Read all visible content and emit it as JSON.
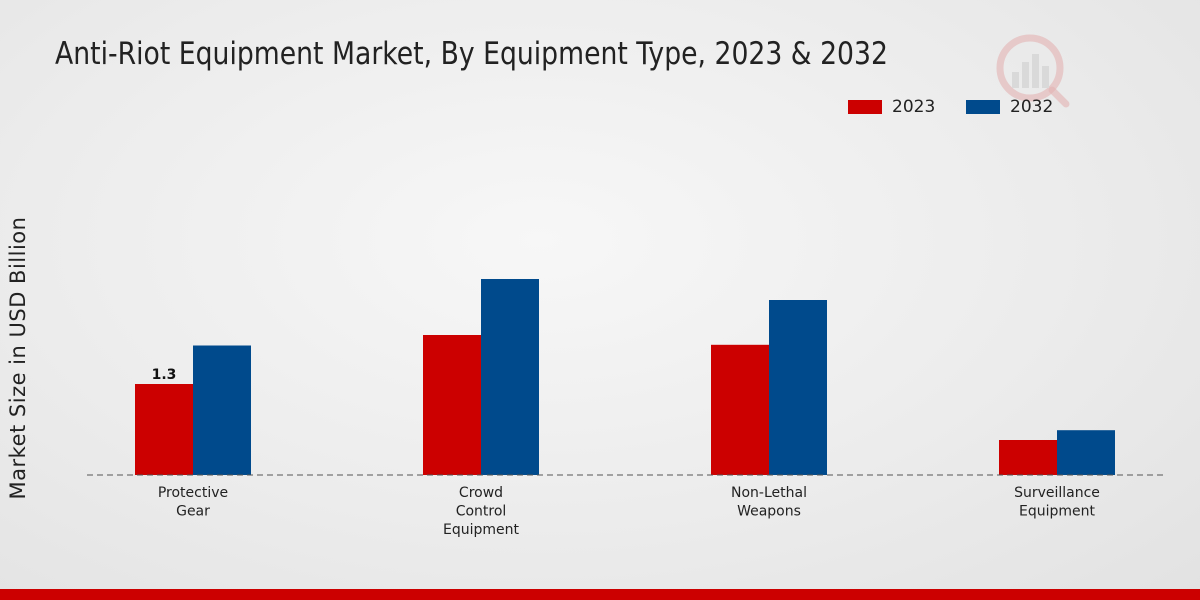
{
  "chart_data": {
    "type": "bar",
    "title": "Anti-Riot Equipment Market, By Equipment Type, 2023 & 2032",
    "xlabel": "",
    "ylabel": "Market Size in USD Billion",
    "categories": [
      [
        "Protective",
        "Gear"
      ],
      [
        "Crowd",
        "Control",
        "Equipment"
      ],
      [
        "Non-Lethal",
        "Weapons"
      ],
      [
        "Surveillance",
        "Equipment"
      ]
    ],
    "series": [
      {
        "name": "2023",
        "color": "#cc0000",
        "values": [
          1.3,
          2.0,
          1.86,
          0.5
        ]
      },
      {
        "name": "2032",
        "color": "#004a8c",
        "values": [
          1.85,
          2.8,
          2.5,
          0.64
        ]
      }
    ],
    "data_labels": [
      {
        "series": 0,
        "index": 0,
        "text": "1.3"
      }
    ],
    "ylim": [
      0,
      4.5
    ],
    "grid": false,
    "legend_position": "top-right"
  },
  "colors": {
    "accent_band": "#cc0000",
    "baseline": "#555555",
    "watermark": "#d9a0a0"
  },
  "watermark_icon": "bar-chart-logo-icon"
}
